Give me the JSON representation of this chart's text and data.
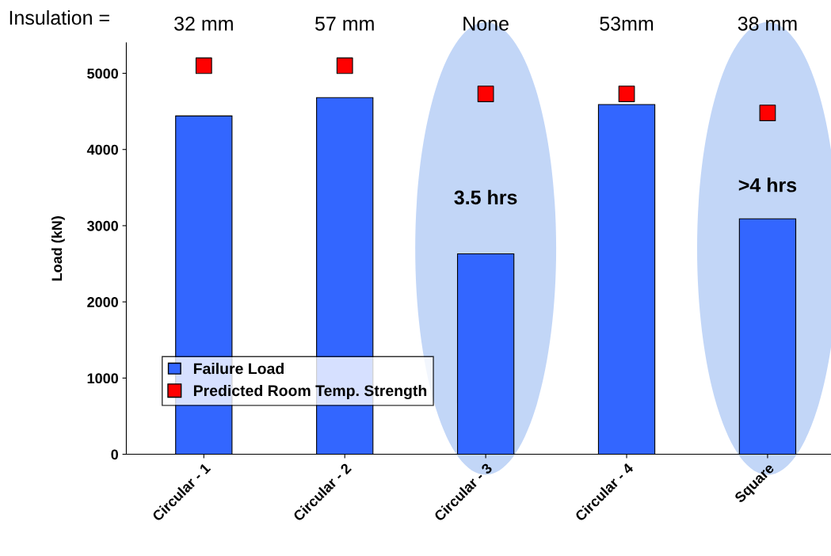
{
  "chart_data": {
    "type": "bar",
    "ylabel": "Load (kN)",
    "categories": [
      "Circular - 1",
      "Circular - 2",
      "Circular - 3",
      "Circular - 4",
      "Square"
    ],
    "series": [
      {
        "name": "Failure Load",
        "color": "#3366ff",
        "values": [
          4440,
          4680,
          2630,
          4590,
          3090
        ]
      },
      {
        "name": "Predicted Room Temp. Strength",
        "type": "scatter",
        "color": "#ff0000",
        "values": [
          5100,
          5100,
          4730,
          4730,
          4480
        ]
      }
    ],
    "ylim": [
      0,
      5400
    ],
    "yticks": [
      0,
      1000,
      2000,
      3000,
      4000,
      5000
    ],
    "marker": "square",
    "grid": false,
    "legend": "bottom left",
    "annotations": [
      "Insulation =",
      "32 mm",
      "57 mm",
      "None",
      "53mm",
      "38 mm",
      "3.5 hrs",
      ">4 hrs"
    ]
  }
}
